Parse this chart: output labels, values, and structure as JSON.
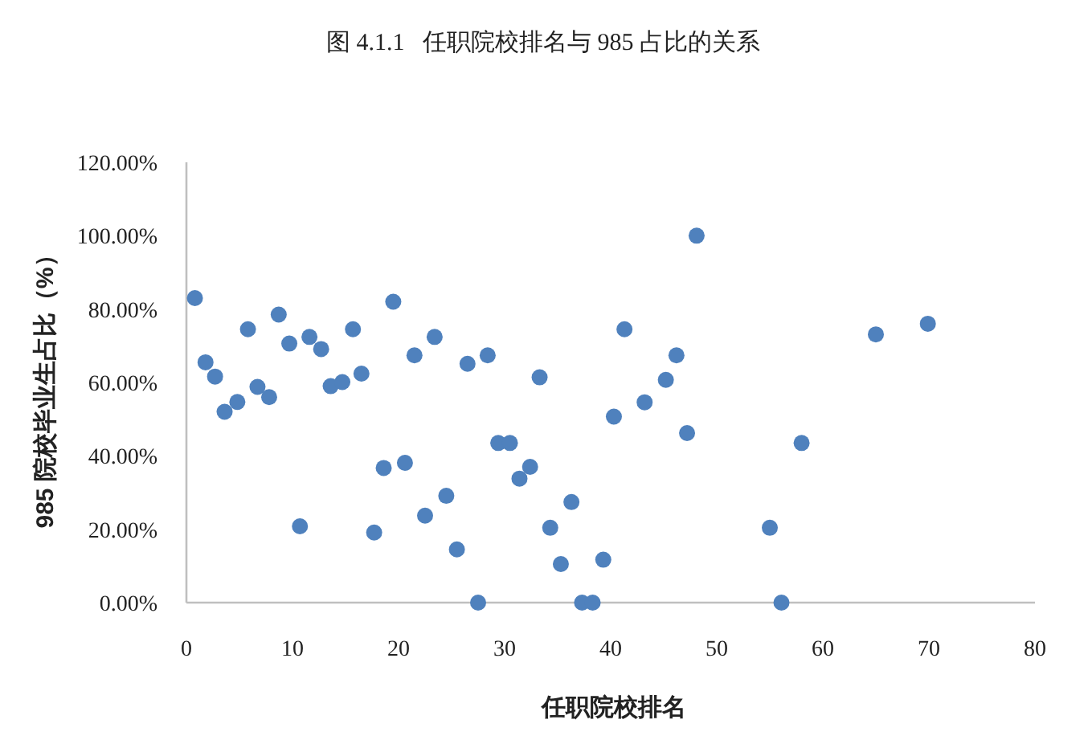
{
  "chart_data": {
    "type": "scatter",
    "title": "图 4.1.1   任职院校排名与 985 占比的关系",
    "xlabel": "任职院校排名",
    "ylabel": "985 院校毕业生占比（%）",
    "xlim": [
      0,
      80
    ],
    "xticks": [
      0,
      10,
      20,
      30,
      40,
      50,
      60,
      70,
      80
    ],
    "ylim": [
      0,
      120
    ],
    "yticks": [
      {
        "value": 0,
        "label": "0.00%"
      },
      {
        "value": 20,
        "label": "20.00%"
      },
      {
        "value": 40,
        "label": "40.00%"
      },
      {
        "value": 60,
        "label": "60.00%"
      },
      {
        "value": 80,
        "label": "80.00%"
      },
      {
        "value": 100,
        "label": "100.00%"
      },
      {
        "value": 120,
        "label": "120.00%"
      }
    ],
    "marker": "circle",
    "series": [
      {
        "color": "#4f81bd",
        "x": [
          0.8,
          1.8,
          2.7,
          3.6,
          4.8,
          5.8,
          6.7,
          7.8,
          8.7,
          9.7,
          10.7,
          11.6,
          12.7,
          13.6,
          14.7,
          15.7,
          16.5,
          17.7,
          18.6,
          19.5,
          20.6,
          21.5,
          22.5,
          23.4,
          24.5,
          25.5,
          26.5,
          27.5,
          28.4,
          29.4,
          30.5,
          31.4,
          32.4,
          33.3,
          34.3,
          35.3,
          36.3,
          37.3,
          38.3,
          39.3,
          40.3,
          41.3,
          43.2,
          45.2,
          46.2,
          47.2,
          48.1,
          55.0,
          56.1,
          58.0,
          65.0,
          69.9
        ],
        "values": [
          83.0,
          65.5,
          61.6,
          52.0,
          54.7,
          74.5,
          58.8,
          56.0,
          78.5,
          70.6,
          20.8,
          72.4,
          69.1,
          59.0,
          60.1,
          74.5,
          62.4,
          19.1,
          36.7,
          82.0,
          38.1,
          67.4,
          23.7,
          72.4,
          29.1,
          14.5,
          65.1,
          0,
          67.4,
          43.5,
          43.5,
          33.8,
          37.0,
          61.4,
          20.4,
          10.5,
          27.4,
          0,
          0,
          11.7,
          50.7,
          74.5,
          54.6,
          60.7,
          67.4,
          46.2,
          100,
          20.4,
          0,
          43.5,
          73.1,
          76.0
        ]
      }
    ]
  }
}
